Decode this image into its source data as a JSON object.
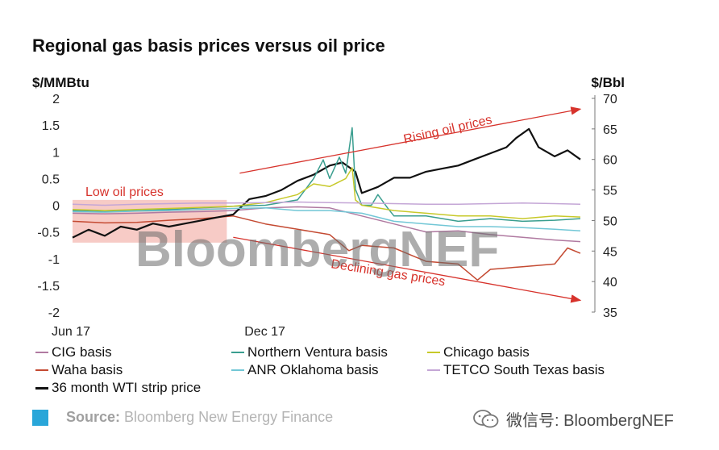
{
  "title": "Regional gas basis prices versus oil price",
  "chart_data": {
    "type": "line",
    "title": "Regional gas basis prices versus oil price",
    "left_axis_unit": "$/MMBtu",
    "right_axis_unit": "$/Bbl",
    "ylim_left": [
      -2,
      2
    ],
    "yticks_left": [
      "2",
      "1.5",
      "1",
      "0.5",
      "0",
      "-0.5",
      "-1",
      "-1.5",
      "-2"
    ],
    "ylim_right": [
      35,
      70
    ],
    "yticks_right": [
      "70",
      "65",
      "60",
      "55",
      "50",
      "45",
      "40",
      "35"
    ],
    "x_range": [
      0,
      16
    ],
    "x_tick_labels": [
      {
        "label": "Jun 17",
        "x": 0
      },
      {
        "label": "Dec 17",
        "x": 6
      }
    ],
    "grid": false,
    "legend_position": "bottom",
    "annotations": {
      "low_oil": "Low oil prices",
      "rising_oil": "Rising oil prices",
      "declining_gas": "Declining gas prices"
    },
    "low_oil_band": {
      "x": [
        0,
        4.8
      ],
      "y": [
        -0.7,
        0.1
      ]
    },
    "rising_arrow": {
      "from": [
        5.2,
        0.6
      ],
      "to": [
        15.8,
        1.8
      ]
    },
    "declining_arrow": {
      "from": [
        5.0,
        -0.6
      ],
      "to": [
        15.8,
        -1.78
      ]
    },
    "series": [
      {
        "name": "CIG basis",
        "color": "#b07aa1",
        "axis": "left",
        "points": [
          [
            0,
            -0.15
          ],
          [
            1,
            -0.16
          ],
          [
            2,
            -0.15
          ],
          [
            3,
            -0.13
          ],
          [
            4,
            -0.12
          ],
          [
            5,
            -0.1
          ],
          [
            6,
            -0.05
          ],
          [
            7,
            -0.03
          ],
          [
            8,
            -0.05
          ],
          [
            9,
            -0.2
          ],
          [
            10,
            -0.35
          ],
          [
            11,
            -0.5
          ],
          [
            12,
            -0.48
          ],
          [
            13,
            -0.55
          ],
          [
            14,
            -0.6
          ],
          [
            15,
            -0.65
          ],
          [
            15.8,
            -0.68
          ]
        ]
      },
      {
        "name": "Waha basis",
        "color": "#c44a32",
        "axis": "left",
        "points": [
          [
            0,
            -0.3
          ],
          [
            1,
            -0.33
          ],
          [
            2,
            -0.32
          ],
          [
            3,
            -0.28
          ],
          [
            4,
            -0.25
          ],
          [
            5,
            -0.2
          ],
          [
            6,
            -0.35
          ],
          [
            7,
            -0.45
          ],
          [
            8,
            -0.55
          ],
          [
            8.6,
            -0.85
          ],
          [
            9,
            -0.75
          ],
          [
            10,
            -0.8
          ],
          [
            11,
            -1.05
          ],
          [
            12,
            -1.1
          ],
          [
            12.6,
            -1.4
          ],
          [
            13,
            -1.2
          ],
          [
            14,
            -1.15
          ],
          [
            15,
            -1.1
          ],
          [
            15.4,
            -0.8
          ],
          [
            15.8,
            -0.9
          ]
        ]
      },
      {
        "name": "36 month WTI strip price",
        "color": "#111111",
        "axis": "right",
        "points": [
          [
            0,
            47.2
          ],
          [
            0.5,
            48.5
          ],
          [
            1,
            47.5
          ],
          [
            1.5,
            49
          ],
          [
            2,
            48.5
          ],
          [
            2.5,
            49.5
          ],
          [
            3,
            49
          ],
          [
            3.5,
            49.5
          ],
          [
            4,
            50
          ],
          [
            4.5,
            50.5
          ],
          [
            5,
            51
          ],
          [
            5.5,
            53.5
          ],
          [
            6,
            54
          ],
          [
            6.5,
            55
          ],
          [
            7,
            56.5
          ],
          [
            7.5,
            57.5
          ],
          [
            8,
            59
          ],
          [
            8.4,
            59.5
          ],
          [
            8.8,
            58
          ],
          [
            9,
            54.5
          ],
          [
            9.5,
            55.5
          ],
          [
            10,
            57
          ],
          [
            10.5,
            57
          ],
          [
            11,
            58
          ],
          [
            11.5,
            58.5
          ],
          [
            12,
            59
          ],
          [
            12.5,
            60
          ],
          [
            13,
            61
          ],
          [
            13.5,
            62
          ],
          [
            13.8,
            63.5
          ],
          [
            14.2,
            65
          ],
          [
            14.5,
            62
          ],
          [
            15,
            60.5
          ],
          [
            15.4,
            61.5
          ],
          [
            15.8,
            60
          ]
        ]
      },
      {
        "name": "Northern Ventura basis",
        "color": "#3a9e8f",
        "axis": "left",
        "points": [
          [
            0,
            -0.1
          ],
          [
            1,
            -0.12
          ],
          [
            2,
            -0.1
          ],
          [
            3,
            -0.08
          ],
          [
            4,
            -0.05
          ],
          [
            5,
            -0.02
          ],
          [
            6,
            0.0
          ],
          [
            7,
            0.1
          ],
          [
            7.5,
            0.5
          ],
          [
            7.8,
            0.85
          ],
          [
            8,
            0.5
          ],
          [
            8.3,
            0.9
          ],
          [
            8.5,
            0.6
          ],
          [
            8.7,
            1.45
          ],
          [
            8.8,
            0.3
          ],
          [
            9,
            0.0
          ],
          [
            9.3,
            0.0
          ],
          [
            9.5,
            0.2
          ],
          [
            9.8,
            -0.05
          ],
          [
            10,
            -0.2
          ],
          [
            11,
            -0.2
          ],
          [
            12,
            -0.3
          ],
          [
            13,
            -0.25
          ],
          [
            14,
            -0.3
          ],
          [
            15,
            -0.28
          ],
          [
            15.8,
            -0.25
          ]
        ]
      },
      {
        "name": "ANR Oklahoma basis",
        "color": "#72c7d6",
        "axis": "left",
        "points": [
          [
            0,
            -0.12
          ],
          [
            1,
            -0.13
          ],
          [
            2,
            -0.11
          ],
          [
            3,
            -0.1
          ],
          [
            4,
            -0.08
          ],
          [
            5,
            -0.06
          ],
          [
            6,
            -0.05
          ],
          [
            7,
            -0.1
          ],
          [
            8,
            -0.1
          ],
          [
            9,
            -0.15
          ],
          [
            10,
            -0.3
          ],
          [
            11,
            -0.35
          ],
          [
            12,
            -0.4
          ],
          [
            13,
            -0.4
          ],
          [
            14,
            -0.42
          ],
          [
            15,
            -0.45
          ],
          [
            15.8,
            -0.48
          ]
        ]
      },
      {
        "name": "Chicago basis",
        "color": "#c7c92a",
        "axis": "left",
        "points": [
          [
            0,
            -0.08
          ],
          [
            1,
            -0.1
          ],
          [
            2,
            -0.08
          ],
          [
            3,
            -0.06
          ],
          [
            4,
            -0.04
          ],
          [
            5,
            -0.02
          ],
          [
            6,
            0.05
          ],
          [
            7,
            0.2
          ],
          [
            7.5,
            0.4
          ],
          [
            8,
            0.35
          ],
          [
            8.5,
            0.5
          ],
          [
            8.7,
            0.7
          ],
          [
            8.8,
            0.1
          ],
          [
            9,
            0.0
          ],
          [
            10,
            -0.1
          ],
          [
            11,
            -0.15
          ],
          [
            12,
            -0.2
          ],
          [
            13,
            -0.2
          ],
          [
            14,
            -0.25
          ],
          [
            15,
            -0.2
          ],
          [
            15.8,
            -0.22
          ]
        ]
      },
      {
        "name": "TETCO South Texas basis",
        "color": "#c4a6d6",
        "axis": "left",
        "points": [
          [
            0,
            0.02
          ],
          [
            1,
            0.0
          ],
          [
            2,
            0.02
          ],
          [
            3,
            0.03
          ],
          [
            4,
            0.04
          ],
          [
            5,
            0.04
          ],
          [
            6,
            0.05
          ],
          [
            7,
            0.06
          ],
          [
            8,
            0.05
          ],
          [
            9,
            0.04
          ],
          [
            10,
            0.03
          ],
          [
            11,
            0.02
          ],
          [
            12,
            0.02
          ],
          [
            13,
            0.03
          ],
          [
            14,
            0.04
          ],
          [
            15,
            0.03
          ],
          [
            15.8,
            0.02
          ]
        ]
      }
    ]
  },
  "legend": [
    {
      "name": "CIG basis",
      "color": "#b07aa1"
    },
    {
      "name": "Northern Ventura basis",
      "color": "#3a9e8f"
    },
    {
      "name": "Chicago basis",
      "color": "#c7c92a"
    },
    {
      "name": "Waha basis",
      "color": "#c44a32"
    },
    {
      "name": "ANR Oklahoma basis",
      "color": "#72c7d6"
    },
    {
      "name": "TETCO South Texas basis",
      "color": "#c4a6d6"
    },
    {
      "name": "36 month WTI strip price",
      "color": "#111111"
    }
  ],
  "watermark": "BloombergNEF",
  "footer": {
    "source_label": "Source:",
    "source_text": " Bloomberg New Energy Finance",
    "wechat_text": "微信号: BloombergNEF",
    "square_color": "#29a6d9",
    "wechat_icon": "wechat-icon"
  }
}
